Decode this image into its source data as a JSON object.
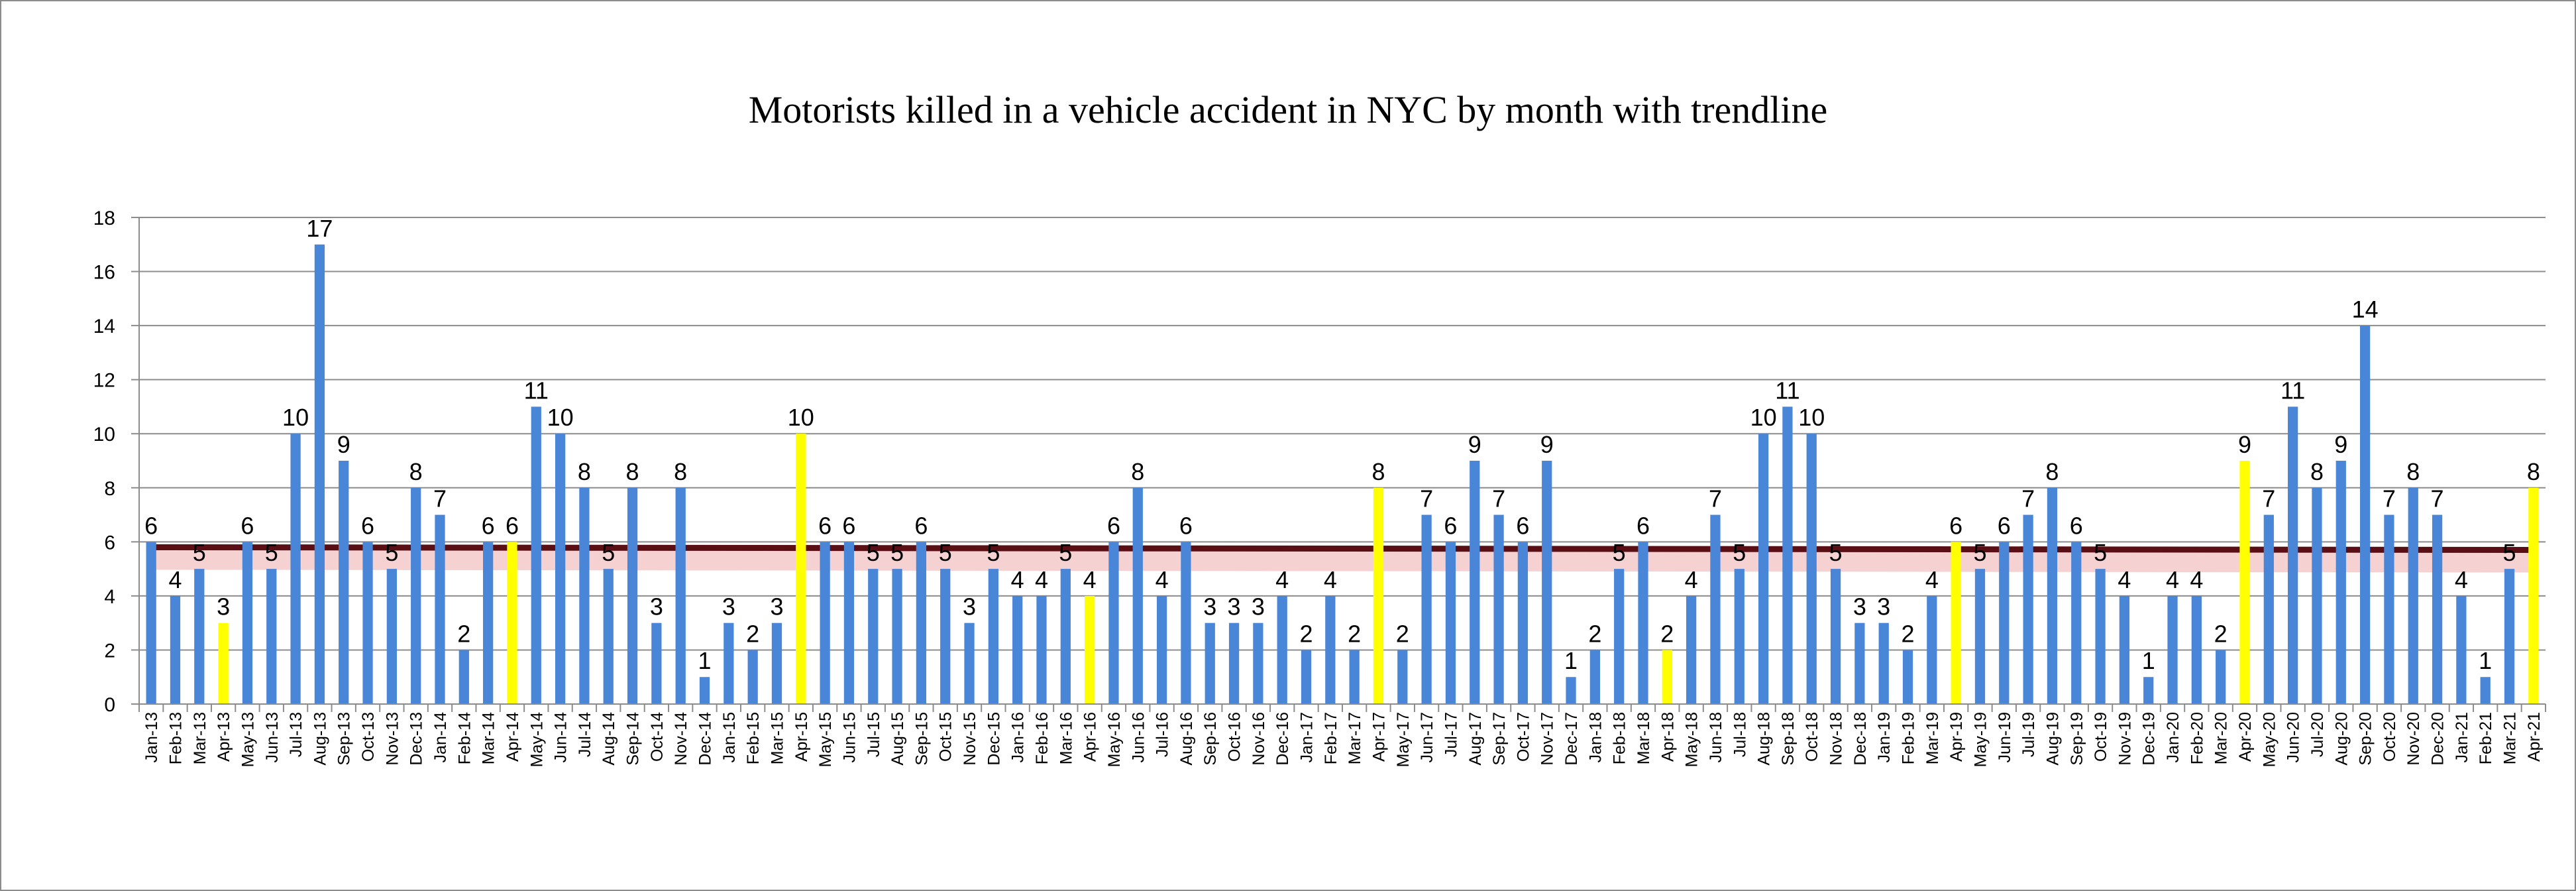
{
  "chart_data": {
    "type": "bar",
    "title": "Motorists killed in a vehicle accident in NYC by month with trendline",
    "xlabel": "",
    "ylabel": "",
    "ylim": [
      0,
      18
    ],
    "yticks": [
      0,
      2,
      4,
      6,
      8,
      10,
      12,
      14,
      16,
      18
    ],
    "grid": true,
    "legend": "none",
    "bar_color": "#4a86d8",
    "highlight_color": "#ffff00",
    "highlight_months": [
      "Apr"
    ],
    "trendline": {
      "type": "linear",
      "start": 5.8,
      "end": 5.7,
      "color": "#5a0f14",
      "band_color": "#e89a9a"
    },
    "categories": [
      "Jan-13",
      "Feb-13",
      "Mar-13",
      "Apr-13",
      "May-13",
      "Jun-13",
      "Jul-13",
      "Aug-13",
      "Sep-13",
      "Oct-13",
      "Nov-13",
      "Dec-13",
      "Jan-14",
      "Feb-14",
      "Mar-14",
      "Apr-14",
      "May-14",
      "Jun-14",
      "Jul-14",
      "Aug-14",
      "Sep-14",
      "Oct-14",
      "Nov-14",
      "Dec-14",
      "Jan-15",
      "Feb-15",
      "Mar-15",
      "Apr-15",
      "May-15",
      "Jun-15",
      "Jul-15",
      "Aug-15",
      "Sep-15",
      "Oct-15",
      "Nov-15",
      "Dec-15",
      "Jan-16",
      "Feb-16",
      "Mar-16",
      "Apr-16",
      "May-16",
      "Jun-16",
      "Jul-16",
      "Aug-16",
      "Sep-16",
      "Oct-16",
      "Nov-16",
      "Dec-16",
      "Jan-17",
      "Feb-17",
      "Mar-17",
      "Apr-17",
      "May-17",
      "Jun-17",
      "Jul-17",
      "Aug-17",
      "Sep-17",
      "Oct-17",
      "Nov-17",
      "Dec-17",
      "Jan-18",
      "Feb-18",
      "Mar-18",
      "Apr-18",
      "May-18",
      "Jun-18",
      "Jul-18",
      "Aug-18",
      "Sep-18",
      "Oct-18",
      "Nov-18",
      "Dec-18",
      "Jan-19",
      "Feb-19",
      "Mar-19",
      "Apr-19",
      "May-19",
      "Jun-19",
      "Jul-19",
      "Aug-19",
      "Sep-19",
      "Oct-19",
      "Nov-19",
      "Dec-19",
      "Jan-20",
      "Feb-20",
      "Mar-20",
      "Apr-20",
      "May-20",
      "Jun-20",
      "Jul-20",
      "Aug-20",
      "Sep-20",
      "Oct-20",
      "Nov-20",
      "Dec-20",
      "Jan-21",
      "Feb-21",
      "Mar-21",
      "Apr-21"
    ],
    "values": [
      6,
      4,
      5,
      3,
      6,
      5,
      10,
      17,
      9,
      6,
      5,
      8,
      7,
      2,
      6,
      6,
      11,
      10,
      8,
      5,
      8,
      3,
      8,
      1,
      3,
      2,
      3,
      10,
      6,
      6,
      5,
      5,
      6,
      5,
      3,
      5,
      4,
      4,
      5,
      4,
      6,
      8,
      4,
      6,
      3,
      3,
      3,
      4,
      2,
      4,
      2,
      8,
      2,
      7,
      6,
      9,
      7,
      6,
      9,
      1,
      2,
      5,
      6,
      2,
      4,
      7,
      5,
      10,
      11,
      10,
      5,
      3,
      3,
      2,
      4,
      6,
      5,
      6,
      7,
      8,
      6,
      5,
      4,
      1,
      4,
      4,
      2,
      9,
      7,
      11,
      8,
      9,
      14,
      7,
      8,
      7,
      4,
      1,
      5,
      8
    ]
  }
}
